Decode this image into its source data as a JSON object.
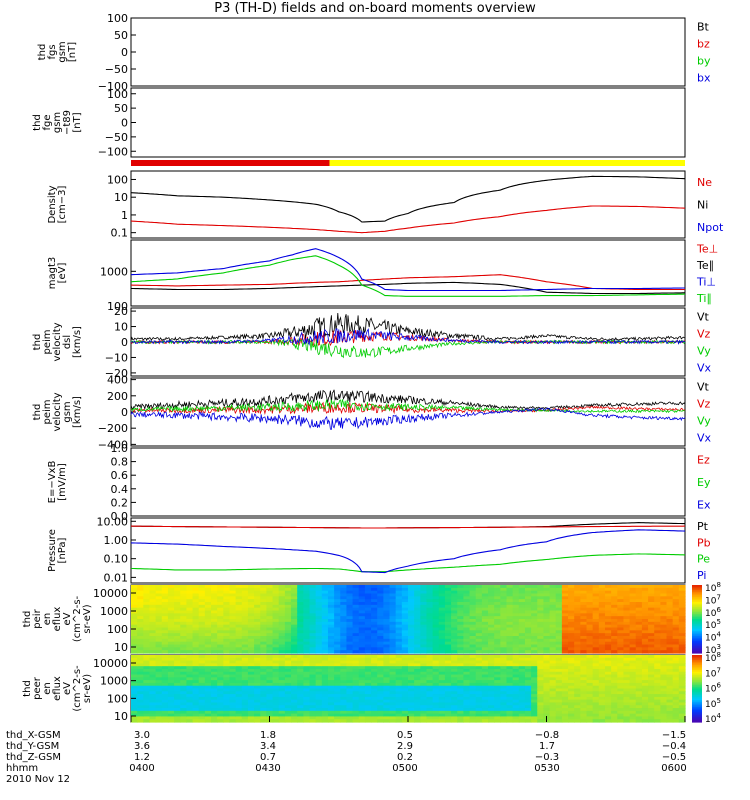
{
  "title": "P3 (TH-D) fields and on-board moments overview",
  "date_label": "2010 Nov 12",
  "colors": {
    "black": "#000000",
    "red": "#e00000",
    "green": "#00cc00",
    "blue": "#0000e0",
    "yellow": "#ffff00",
    "mode_red": "#ff0000"
  },
  "chart_data": [
    {
      "type": "line",
      "id": "fgs",
      "ylabel": [
        "thd",
        "fgs",
        "gsm",
        "[nT]"
      ],
      "yticks": [
        "100",
        "50",
        "0",
        "−50",
        "−100"
      ],
      "ylim": [
        -100,
        100
      ],
      "legend": [
        "Bt",
        "bz",
        "by",
        "bx"
      ],
      "series": []
    },
    {
      "type": "line",
      "id": "fge",
      "ylabel": [
        "thd",
        "fge",
        "gsm",
        "−t89",
        "[nT]"
      ],
      "yticks": [
        "100",
        "50",
        "0",
        "−50",
        "−100"
      ],
      "ylim": [
        -120,
        120
      ],
      "legend": [],
      "series": []
    },
    {
      "type": "bar",
      "id": "mode-bar",
      "segments": [
        {
          "color": "red",
          "from": "0400",
          "to": "0443"
        },
        {
          "color": "yellow",
          "from": "0443",
          "to": "0600"
        }
      ]
    },
    {
      "type": "line",
      "id": "density",
      "log": true,
      "ylabel": [
        "Density",
        "[cm−3]"
      ],
      "yticks": [
        "100",
        "10",
        "1",
        "0.1"
      ],
      "ylim": [
        0.05,
        300
      ],
      "legend": [
        "Ne",
        "Ni",
        "Npot"
      ],
      "x": [
        0,
        10,
        20,
        30,
        40,
        45,
        50,
        55,
        60,
        70,
        80,
        90,
        100,
        110,
        120
      ],
      "series": [
        {
          "color": "black",
          "values": [
            18,
            12,
            10,
            7,
            4,
            1.5,
            0.4,
            0.45,
            1.2,
            5,
            25,
            90,
            150,
            140,
            110
          ]
        },
        {
          "color": "red",
          "values": [
            0.45,
            0.3,
            0.25,
            0.2,
            0.15,
            0.12,
            0.1,
            0.12,
            0.18,
            0.35,
            0.8,
            1.8,
            3.2,
            3.0,
            2.4
          ]
        }
      ]
    },
    {
      "type": "line",
      "id": "temperature",
      "log": true,
      "ylabel": [
        "magt3",
        "[eV]"
      ],
      "yticks": [
        "1000",
        "100"
      ],
      "ylim": [
        100,
        8000
      ],
      "legend": [
        "Te⊥",
        "Te∥",
        "Ti⊥",
        "Ti∥"
      ],
      "x": [
        0,
        10,
        20,
        30,
        35,
        40,
        45,
        50,
        55,
        60,
        70,
        80,
        90,
        100,
        110,
        120
      ],
      "series": [
        {
          "color": "red",
          "values": [
            400,
            380,
            400,
            420,
            450,
            480,
            500,
            550,
            600,
            650,
            700,
            800,
            500,
            320,
            300,
            300
          ]
        },
        {
          "color": "black",
          "values": [
            320,
            300,
            300,
            320,
            340,
            360,
            380,
            400,
            420,
            450,
            480,
            420,
            250,
            230,
            230,
            240
          ]
        },
        {
          "color": "blue",
          "values": [
            800,
            900,
            1200,
            2000,
            3000,
            4500,
            2500,
            600,
            300,
            280,
            280,
            280,
            300,
            320,
            320,
            330
          ]
        },
        {
          "color": "green",
          "values": [
            500,
            600,
            900,
            1500,
            2200,
            2800,
            1500,
            400,
            200,
            190,
            190,
            190,
            200,
            200,
            210,
            220
          ]
        }
      ]
    },
    {
      "type": "line",
      "id": "perm-velocity",
      "noisy": true,
      "ylabel": [
        "thd",
        "peim",
        "velocity",
        "dsl",
        "[km/s]"
      ],
      "yticks": [
        "20",
        "10",
        "0",
        "−10",
        "−20"
      ],
      "ylim": [
        -22,
        22
      ],
      "legend": [
        "Vt",
        "Vz",
        "Vy",
        "Vx"
      ],
      "x": [
        0,
        10,
        20,
        30,
        35,
        40,
        45,
        50,
        55,
        60,
        70,
        80,
        90,
        100,
        110,
        120
      ],
      "series": [
        {
          "color": "black",
          "values": [
            2,
            2,
            3,
            4,
            6,
            9,
            12,
            11,
            9,
            7,
            4,
            2,
            4,
            2,
            2,
            3
          ],
          "amp": [
            1,
            1,
            1,
            2,
            4,
            7,
            7,
            6,
            5,
            3,
            2,
            1,
            1,
            1,
            1,
            1
          ]
        },
        {
          "color": "red",
          "values": [
            0,
            0,
            0,
            0,
            1,
            2,
            3,
            4,
            4,
            3,
            1,
            0,
            0,
            0,
            0,
            0
          ],
          "amp": [
            1,
            1,
            1,
            1,
            3,
            5,
            5,
            4,
            3,
            2,
            1,
            1,
            1,
            1,
            1,
            1
          ]
        },
        {
          "color": "green",
          "values": [
            0,
            0,
            0,
            0,
            -1,
            -3,
            -5,
            -7,
            -6,
            -4,
            -1,
            0,
            0,
            0,
            0,
            0
          ],
          "amp": [
            1,
            1,
            1,
            1,
            3,
            5,
            5,
            4,
            3,
            2,
            1,
            1,
            1,
            1,
            1,
            1
          ]
        },
        {
          "color": "blue",
          "values": [
            0,
            0,
            0,
            1,
            2,
            3,
            4,
            5,
            4,
            3,
            1,
            0,
            0,
            0,
            0,
            0
          ],
          "amp": [
            1,
            1,
            1,
            1,
            3,
            5,
            5,
            4,
            3,
            2,
            1,
            1,
            1,
            1,
            1,
            1
          ]
        }
      ]
    },
    {
      "type": "line",
      "id": "perm-velocity-gsm",
      "noisy": true,
      "ylabel": [
        "thd",
        "peim",
        "velocity",
        "gsm",
        "[km/s]"
      ],
      "yticks": [
        "400",
        "200",
        "0",
        "−200",
        "−400"
      ],
      "ylim": [
        -420,
        420
      ],
      "legend": [
        "Vt",
        "Vz",
        "Vy",
        "Vx"
      ],
      "x": [
        0,
        10,
        20,
        30,
        35,
        40,
        45,
        50,
        55,
        60,
        70,
        80,
        90,
        100,
        110,
        120
      ],
      "series": [
        {
          "color": "black",
          "values": [
            60,
            90,
            110,
            140,
            170,
            190,
            200,
            190,
            170,
            150,
            110,
            60,
            50,
            80,
            100,
            110
          ],
          "amp": [
            30,
            40,
            50,
            60,
            70,
            80,
            80,
            70,
            60,
            50,
            30,
            15,
            15,
            20,
            20,
            20
          ]
        },
        {
          "color": "red",
          "values": [
            20,
            20,
            25,
            30,
            40,
            50,
            60,
            50,
            40,
            30,
            20,
            10,
            20,
            60,
            40,
            30
          ],
          "amp": [
            25,
            30,
            40,
            50,
            60,
            70,
            70,
            60,
            50,
            40,
            25,
            15,
            15,
            15,
            15,
            15
          ]
        },
        {
          "color": "green",
          "values": [
            30,
            40,
            50,
            60,
            70,
            80,
            90,
            80,
            70,
            60,
            50,
            30,
            20,
            10,
            10,
            10
          ],
          "amp": [
            20,
            30,
            40,
            50,
            60,
            70,
            70,
            60,
            50,
            40,
            25,
            15,
            15,
            15,
            15,
            15
          ]
        },
        {
          "color": "blue",
          "values": [
            -30,
            -40,
            -60,
            -80,
            -100,
            -130,
            -150,
            -130,
            -110,
            -80,
            -40,
            0,
            40,
            -40,
            -70,
            -80
          ],
          "amp": [
            30,
            40,
            50,
            60,
            70,
            80,
            80,
            70,
            60,
            50,
            30,
            15,
            15,
            20,
            20,
            20
          ]
        }
      ]
    },
    {
      "type": "line",
      "id": "efield",
      "ylabel": [
        "E=−VxB",
        "[mV/m]"
      ],
      "yticks": [
        "1.0",
        "0.8",
        "0.6",
        "0.4",
        "0.2",
        "0.0"
      ],
      "ylim": [
        0,
        1
      ],
      "legend": [
        "Ez",
        "Ey",
        "Ex"
      ],
      "series": []
    },
    {
      "type": "line",
      "id": "pressure",
      "log": true,
      "ylabel": [
        "Pressure",
        "[nPa]"
      ],
      "yticks": [
        "10.00",
        "1.00",
        "0.10",
        "0.01"
      ],
      "ylim": [
        0.005,
        15
      ],
      "legend": [
        "Pt",
        "Pb",
        "Pe",
        "Pi"
      ],
      "x": [
        0,
        10,
        20,
        30,
        40,
        45,
        50,
        55,
        60,
        70,
        80,
        90,
        100,
        110,
        120
      ],
      "series": [
        {
          "color": "black",
          "values": [
            5.5,
            5.2,
            5.0,
            4.8,
            4.6,
            4.5,
            4.4,
            4.4,
            4.5,
            4.6,
            4.8,
            5.2,
            7.0,
            8.5,
            7.5
          ]
        },
        {
          "color": "red",
          "values": [
            5.5,
            5.2,
            5.0,
            4.8,
            4.6,
            4.5,
            4.4,
            4.4,
            4.5,
            4.6,
            4.8,
            5.0,
            5.2,
            5.4,
            5.5
          ]
        },
        {
          "color": "green",
          "values": [
            0.03,
            0.025,
            0.025,
            0.028,
            0.03,
            0.028,
            0.02,
            0.02,
            0.025,
            0.035,
            0.05,
            0.09,
            0.15,
            0.18,
            0.16
          ]
        },
        {
          "color": "blue",
          "values": [
            0.7,
            0.6,
            0.45,
            0.35,
            0.25,
            0.15,
            0.02,
            0.018,
            0.04,
            0.1,
            0.3,
            0.8,
            2.5,
            3.5,
            3.0
          ]
        }
      ]
    },
    {
      "type": "heatmap",
      "id": "peir-spec",
      "ylabel": [
        "thd",
        "peir",
        "en",
        "eflux",
        "eV",
        "(cm^2-s-",
        "sr-eV)"
      ],
      "yticks": [
        "10000",
        "1000",
        "100",
        "10"
      ],
      "colorbar_labels": [
        "10^8",
        "10^7",
        "10^6",
        "10^5",
        "10^4",
        "10^3"
      ]
    },
    {
      "type": "heatmap",
      "id": "peer-spec",
      "ylabel": [
        "thd",
        "peer",
        "en",
        "eflux",
        "eV",
        "(cm^2-s-",
        "sr-eV)"
      ],
      "yticks": [
        "10000",
        "1000",
        "100",
        "10"
      ],
      "colorbar_labels": [
        "10^8",
        "10^7",
        "10^6",
        "10^5",
        "10^4"
      ]
    }
  ],
  "x_axis": {
    "rows": [
      {
        "label": "thd_X-GSM",
        "values": [
          "3.0",
          "1.8",
          "0.5",
          "−0.8",
          "−1.5"
        ]
      },
      {
        "label": "thd_Y-GSM",
        "values": [
          "3.6",
          "3.4",
          "2.9",
          "1.7",
          "−0.4"
        ]
      },
      {
        "label": "thd_Z-GSM",
        "values": [
          "1.2",
          "0.7",
          "0.2",
          "−0.3",
          "−0.5"
        ]
      },
      {
        "label": "hhmm",
        "values": [
          "0400",
          "0430",
          "0500",
          "0530",
          "0600"
        ]
      }
    ]
  }
}
